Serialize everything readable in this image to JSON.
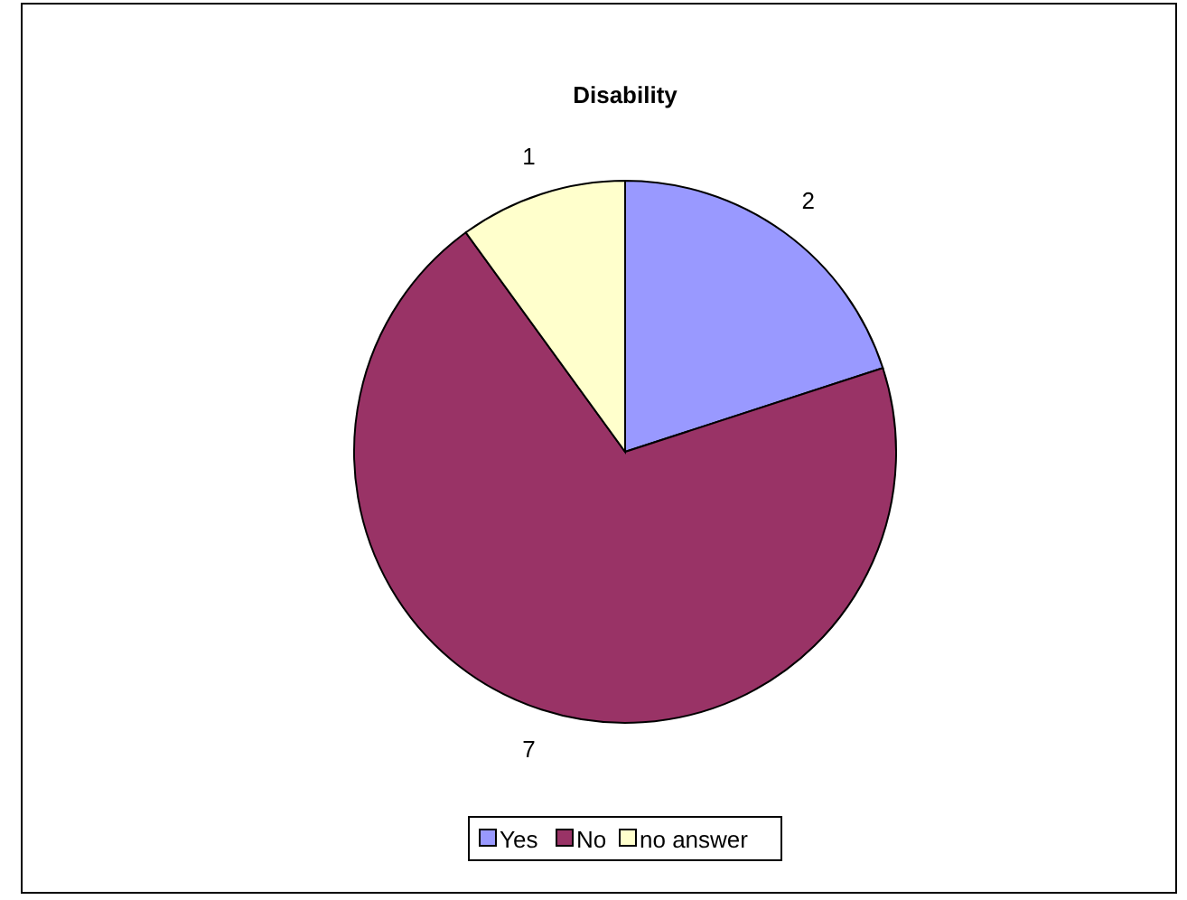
{
  "chart_data": {
    "type": "pie",
    "title": "Disability",
    "categories": [
      "Yes",
      "No",
      "no answer"
    ],
    "values": [
      2,
      7,
      1
    ],
    "colors": [
      "#9999ff",
      "#993366",
      "#ffffcc"
    ],
    "data_labels": true,
    "legend": "bottom"
  }
}
